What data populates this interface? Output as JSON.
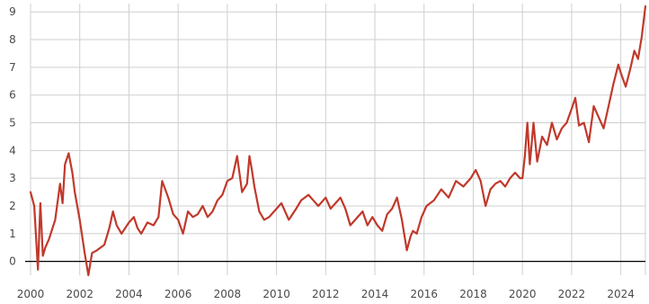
{
  "chart_data": {
    "type": "line",
    "title": "",
    "xlabel": "",
    "ylabel": "",
    "xlim": [
      2000,
      2025
    ],
    "ylim": [
      -0.5,
      9.3
    ],
    "grid": true,
    "line_color": "#c0392b",
    "x_ticks": [
      2000,
      2002,
      2004,
      2006,
      2008,
      2010,
      2012,
      2014,
      2016,
      2018,
      2020,
      2022,
      2024
    ],
    "x_tick_labels": [
      "2000",
      "2002",
      "2004",
      "2006",
      "2008",
      "2010",
      "2012",
      "2014",
      "2016",
      "2018",
      "2020",
      "2022",
      "2024"
    ],
    "y_ticks": [
      0,
      1,
      2,
      3,
      4,
      5,
      6,
      7,
      8,
      9
    ],
    "y_tick_labels": [
      "0",
      "1",
      "2",
      "3",
      "4",
      "5",
      "6",
      "7",
      "8",
      "9"
    ],
    "series": [
      {
        "x": [
          2000.0,
          2000.15,
          2000.3,
          2000.4,
          2000.5,
          2000.6,
          2000.75,
          2001.0,
          2001.2,
          2001.3,
          2001.4,
          2001.55,
          2001.7,
          2001.8,
          2002.0,
          2002.2,
          2002.35,
          2002.5,
          2002.7,
          2003.0,
          2003.2,
          2003.35,
          2003.5,
          2003.7,
          2004.0,
          2004.2,
          2004.35,
          2004.5,
          2004.75,
          2005.0,
          2005.2,
          2005.35,
          2005.6,
          2005.8,
          2006.0,
          2006.2,
          2006.4,
          2006.6,
          2006.8,
          2007.0,
          2007.2,
          2007.4,
          2007.6,
          2007.8,
          2008.0,
          2008.2,
          2008.4,
          2008.6,
          2008.8,
          2008.9,
          2009.0,
          2009.1,
          2009.3,
          2009.5,
          2009.7,
          2009.9,
          2010.2,
          2010.5,
          2010.8,
          2011.0,
          2011.3,
          2011.5,
          2011.7,
          2012.0,
          2012.2,
          2012.4,
          2012.6,
          2012.8,
          2013.0,
          2013.2,
          2013.5,
          2013.7,
          2013.9,
          2014.1,
          2014.3,
          2014.5,
          2014.7,
          2014.9,
          2015.1,
          2015.3,
          2015.45,
          2015.55,
          2015.7,
          2015.9,
          2016.1,
          2016.4,
          2016.7,
          2017.0,
          2017.3,
          2017.6,
          2017.9,
          2018.1,
          2018.3,
          2018.5,
          2018.7,
          2018.9,
          2019.1,
          2019.3,
          2019.5,
          2019.7,
          2019.9,
          2020.0,
          2020.1,
          2020.2,
          2020.3,
          2020.45,
          2020.6,
          2020.8,
          2021.0,
          2021.2,
          2021.4,
          2021.6,
          2021.8,
          2022.0,
          2022.15,
          2022.3,
          2022.5,
          2022.7,
          2022.9,
          2023.1,
          2023.3,
          2023.5,
          2023.7,
          2023.9,
          2024.0,
          2024.2,
          2024.4,
          2024.55,
          2024.7,
          2024.85,
          2025.0
        ],
        "y": [
          2.5,
          2.0,
          -0.3,
          2.1,
          0.2,
          0.5,
          0.8,
          1.5,
          2.8,
          2.1,
          3.5,
          3.9,
          3.2,
          2.5,
          1.5,
          0.3,
          -0.5,
          0.3,
          0.4,
          0.6,
          1.2,
          1.8,
          1.3,
          1.0,
          1.4,
          1.6,
          1.2,
          1.0,
          1.4,
          1.3,
          1.6,
          2.9,
          2.3,
          1.7,
          1.5,
          1.0,
          1.8,
          1.6,
          1.7,
          2.0,
          1.6,
          1.8,
          2.2,
          2.4,
          2.9,
          3.0,
          3.8,
          2.5,
          2.8,
          3.8,
          3.3,
          2.7,
          1.8,
          1.5,
          1.6,
          1.8,
          2.1,
          1.5,
          1.9,
          2.2,
          2.4,
          2.2,
          2.0,
          2.3,
          1.9,
          2.1,
          2.3,
          1.9,
          1.3,
          1.5,
          1.8,
          1.3,
          1.6,
          1.3,
          1.1,
          1.7,
          1.9,
          2.3,
          1.5,
          0.4,
          0.9,
          1.1,
          1.0,
          1.6,
          2.0,
          2.2,
          2.6,
          2.3,
          2.9,
          2.7,
          3.0,
          3.3,
          2.9,
          2.0,
          2.6,
          2.8,
          2.9,
          2.7,
          3.0,
          3.2,
          3.0,
          3.0,
          3.8,
          5.0,
          3.5,
          5.0,
          3.6,
          4.5,
          4.2,
          5.0,
          4.4,
          4.8,
          5.0,
          5.5,
          5.9,
          4.9,
          5.0,
          4.3,
          5.6,
          5.2,
          4.8,
          5.6,
          6.4,
          7.1,
          6.8,
          6.3,
          7.0,
          7.6,
          7.3,
          8.1,
          9.2
        ]
      }
    ]
  }
}
